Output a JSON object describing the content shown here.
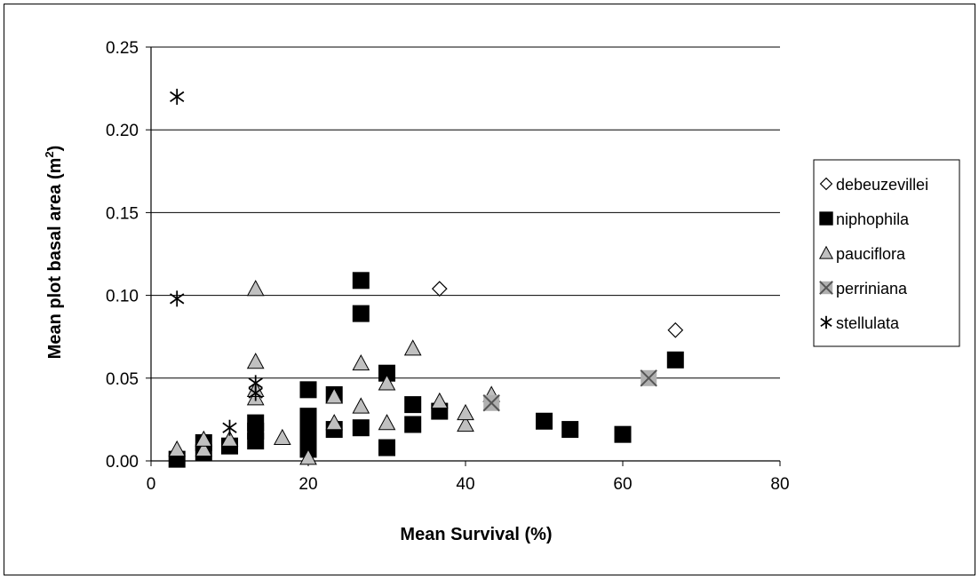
{
  "chart_data": {
    "type": "scatter",
    "title": "",
    "xlabel": "Mean Survival (%)",
    "ylabel_main": "Mean plot basal area (m",
    "ylabel_sup": "2",
    "ylabel_end": ")",
    "xlim": [
      0,
      80
    ],
    "ylim": [
      0,
      0.25
    ],
    "x_ticks": [
      0,
      20,
      40,
      60,
      80
    ],
    "x_tick_labels": [
      "0",
      "20",
      "40",
      "60",
      "80"
    ],
    "y_ticks": [
      0,
      0.05,
      0.1,
      0.15,
      0.2,
      0.25
    ],
    "y_tick_labels": [
      "0.00",
      "0.05",
      "0.10",
      "0.15",
      "0.20",
      "0.25"
    ],
    "grid": "horizontal",
    "legend_position": "right",
    "series": [
      {
        "name": "debeuzevillei",
        "marker": "diamond",
        "color": "#ffffff",
        "points": [
          [
            36.7,
            0.104
          ],
          [
            66.7,
            0.079
          ]
        ]
      },
      {
        "name": "niphophila",
        "marker": "square",
        "color": "#000000",
        "points": [
          [
            3.3,
            0.001
          ],
          [
            6.7,
            0.005
          ],
          [
            6.7,
            0.011
          ],
          [
            10,
            0.009
          ],
          [
            13.3,
            0.012
          ],
          [
            13.3,
            0.018
          ],
          [
            13.3,
            0.023
          ],
          [
            20,
            0.007
          ],
          [
            20,
            0.011
          ],
          [
            20,
            0.016
          ],
          [
            20,
            0.021
          ],
          [
            20,
            0.027
          ],
          [
            20,
            0.043
          ],
          [
            23.3,
            0.019
          ],
          [
            23.3,
            0.04
          ],
          [
            26.7,
            0.02
          ],
          [
            26.7,
            0.089
          ],
          [
            26.7,
            0.109
          ],
          [
            30,
            0.008
          ],
          [
            30,
            0.053
          ],
          [
            33.3,
            0.022
          ],
          [
            33.3,
            0.034
          ],
          [
            36.7,
            0.03
          ],
          [
            50,
            0.024
          ],
          [
            53.3,
            0.019
          ],
          [
            60,
            0.016
          ],
          [
            66.7,
            0.061
          ]
        ]
      },
      {
        "name": "pauciflora",
        "marker": "triangle",
        "color": "#c0c0c0",
        "points": [
          [
            3.3,
            0.007
          ],
          [
            6.7,
            0.007
          ],
          [
            6.7,
            0.013
          ],
          [
            10,
            0.013
          ],
          [
            13.3,
            0.038
          ],
          [
            13.3,
            0.043
          ],
          [
            13.3,
            0.06
          ],
          [
            13.3,
            0.104
          ],
          [
            16.7,
            0.014
          ],
          [
            20,
            0.002
          ],
          [
            23.3,
            0.023
          ],
          [
            23.3,
            0.039
          ],
          [
            26.7,
            0.033
          ],
          [
            26.7,
            0.059
          ],
          [
            30,
            0.023
          ],
          [
            30,
            0.047
          ],
          [
            33.3,
            0.068
          ],
          [
            36.7,
            0.036
          ],
          [
            40,
            0.022
          ],
          [
            40,
            0.029
          ],
          [
            43.3,
            0.04
          ]
        ]
      },
      {
        "name": "perriniana",
        "marker": "x-square",
        "color": "#b0b0b0",
        "points": [
          [
            43.3,
            0.035
          ],
          [
            63.3,
            0.05
          ]
        ]
      },
      {
        "name": "stellulata",
        "marker": "asterisk",
        "color": "#000000",
        "points": [
          [
            3.3,
            0.22
          ],
          [
            3.3,
            0.098
          ],
          [
            10,
            0.02
          ],
          [
            13.3,
            0.041
          ],
          [
            13.3,
            0.047
          ]
        ]
      }
    ]
  }
}
